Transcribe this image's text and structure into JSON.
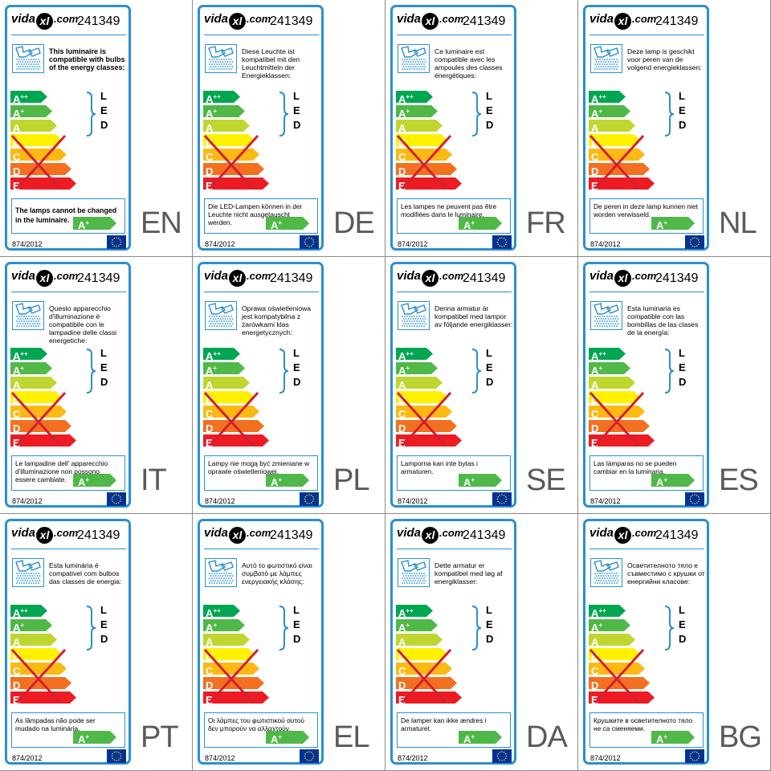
{
  "code": "241349",
  "logo": {
    "pre": "vida",
    "mid": "xl",
    "post": ".com"
  },
  "regulation": "874/2012",
  "classes": [
    {
      "label": "A",
      "sup": "++",
      "color": "#00a651",
      "width": 46
    },
    {
      "label": "A",
      "sup": "+",
      "color": "#50b848",
      "width": 52
    },
    {
      "label": "A",
      "sup": "",
      "color": "#bed62f",
      "width": 58
    },
    {
      "label": "B",
      "sup": "",
      "color": "#fff100",
      "width": 64
    },
    {
      "label": "C",
      "sup": "",
      "color": "#fdb913",
      "width": 70
    },
    {
      "label": "D",
      "sup": "",
      "color": "#f37021",
      "width": 76
    },
    {
      "label": "E",
      "sup": "",
      "color": "#ed1c24",
      "width": 82
    }
  ],
  "led_letters": [
    "L",
    "E",
    "D"
  ],
  "badge": {
    "label": "A",
    "sup": "+",
    "color": "#50b848"
  },
  "colors": {
    "frame": "#2a8fd0",
    "cross": "#d22030",
    "lang": "#5a5a5a",
    "eu": "#003399",
    "eu_star": "#ffcc00"
  },
  "icons": {
    "bulb": "bulb-icon",
    "eu": "eu-flag-icon",
    "cross": "cross-icon",
    "brace": "brace-icon"
  },
  "labels": [
    {
      "lang": "EN",
      "intro": "This luminaire is compatible with bulbs of the energy classes:",
      "note": "The lamps cannot be changed in the luminaire.",
      "bold": true
    },
    {
      "lang": "DE",
      "intro": "Diese Leuchte ist kompatibel mit den Leuchtmitteln der Energieklassen:",
      "note": "Die LED-Lampen können in der Leuchte nicht ausgetauscht werden.",
      "bold": false
    },
    {
      "lang": "FR",
      "intro": "Ce luminaire est compatible avec les ampoules des classes énergétiques:",
      "note": "Les lampes ne peuvent pas être modifiées dans le luminaire.",
      "bold": false
    },
    {
      "lang": "NL",
      "intro": "Deze lamp is geschikt voor peren van de volgend energieklassen:",
      "note": "De peren in deze lamp kunnen niet worden verwisseld.",
      "bold": false
    },
    {
      "lang": "IT",
      "intro": "Questo apparecchio d'illuminazione è compatibile con le lampadine delle classi energetiche:",
      "note": "Le lampadine dell' apparecchio d'illuminazione non possono essere cambiate.",
      "bold": false
    },
    {
      "lang": "PL",
      "intro": "Oprawa oświetleniowa jest kompatybilna z żarówkami klas energetycznych:",
      "note": "Lampy nie mogą być zmieniane w oprawie oświetleniowej.",
      "bold": false
    },
    {
      "lang": "SE",
      "intro": "Denna armatur är kompatibel med lampor av följande energiklasser:",
      "note": "Lamporna kan inte bytas i armaturen.",
      "bold": false
    },
    {
      "lang": "ES",
      "intro": "Esta luminaria es compatible con las bombillas de las clases de la energía:",
      "note": "Las lámparas no se pueden cambiar en la luminaria.",
      "bold": false
    },
    {
      "lang": "PT",
      "intro": "Esta luminária é compativel com bulbos das classes de energia:",
      "note": "As lâmpadas não pode ser mudado na luminária.",
      "bold": false
    },
    {
      "lang": "EL",
      "intro": "Αυτό το φωτιστικό είναι συμβατό με λάμπες ενεργειακής κλάσης:",
      "note": "Οι λάμπες του φωτιστικού αυτού δεν μπορούν να αλλαχτούν.",
      "bold": false
    },
    {
      "lang": "DA",
      "intro": "Dette armatur er kompatibel med løg af energiklasser:",
      "note": "De lamper kan ikke ændres i armaturet.",
      "bold": false
    },
    {
      "lang": "BG",
      "intro": "Осветителното тяло е съвместимо с крушки от енергийни класове:",
      "note": "Крушките в осветителното тяло не са сменяеми.",
      "bold": false
    }
  ]
}
